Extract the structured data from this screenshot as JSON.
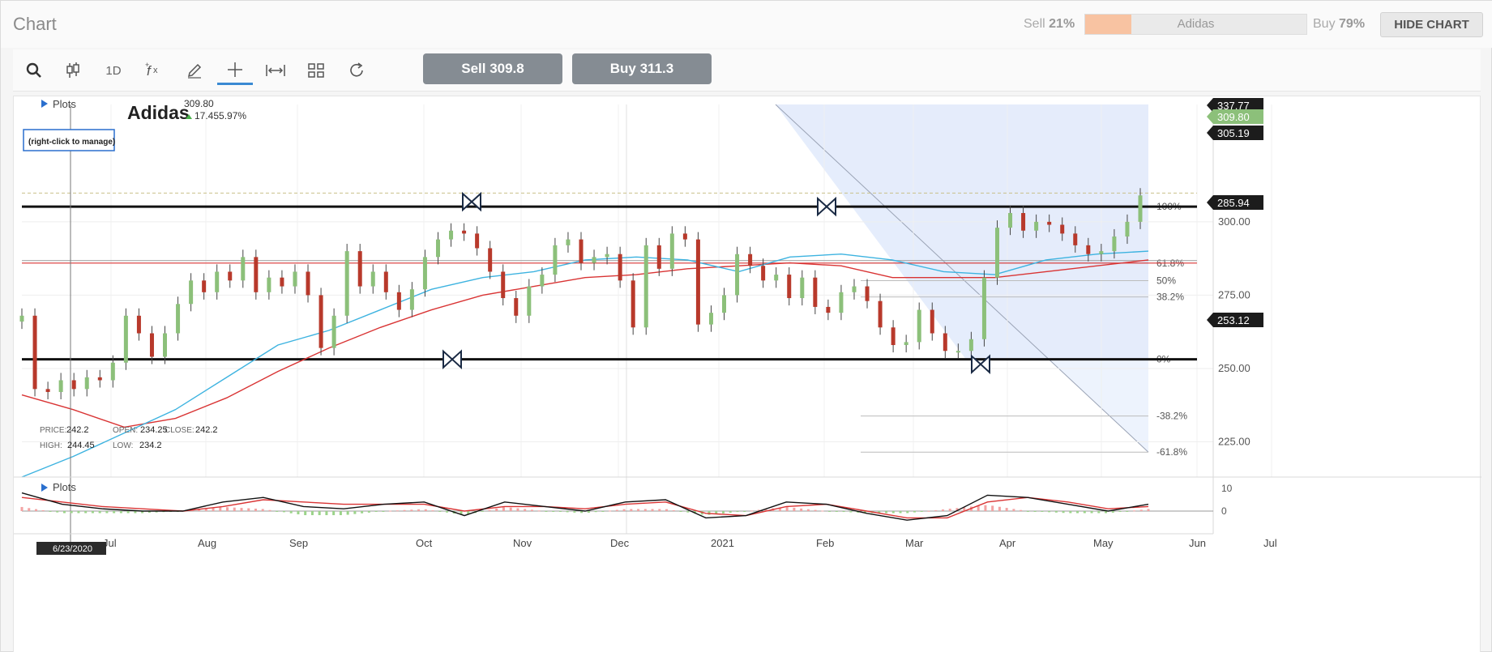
{
  "app": {
    "title": "Chart"
  },
  "sentiment": {
    "sell_label": "Sell",
    "sell_pct": "21%",
    "buy_label": "Buy",
    "buy_pct": "79%",
    "sell_fraction": 0.21,
    "instrument": "Adidas",
    "sell_color": "#f8c3a2"
  },
  "header": {
    "hide_chart_label": "HIDE CHART"
  },
  "toolbar": {
    "tools": [
      {
        "name": "search-icon",
        "glyph": ""
      },
      {
        "name": "candle-type-icon",
        "glyph": ""
      },
      {
        "name": "timeframe",
        "glyph": "1D"
      },
      {
        "name": "indicators-icon",
        "glyph": ""
      },
      {
        "name": "draw-icon",
        "glyph": ""
      },
      {
        "name": "crosshair-icon",
        "glyph": ""
      },
      {
        "name": "measure-icon",
        "glyph": ""
      },
      {
        "name": "layout-icon",
        "glyph": ""
      },
      {
        "name": "refresh-icon",
        "glyph": ""
      }
    ],
    "sell_button": "Sell 309.8",
    "buy_button": "Buy 311.3"
  },
  "chart": {
    "symbol": "Adidas",
    "last_price": "309.80",
    "change": "17.455.97%",
    "plots_label": "Plots",
    "manage_hint": "(right-click to manage)",
    "ohlc": {
      "price_label": "PRICE:",
      "price": "242.2",
      "open_label": "OPEN:",
      "open": "234.25",
      "close_label": "CLOSE:",
      "close": "242.2",
      "high_label": "HIGH:",
      "high": "244.45",
      "low_label": "LOW:",
      "low": "234.2"
    },
    "price_axis_ticks": [
      "300.00",
      "275.00",
      "250.00",
      "225.00"
    ],
    "price_tags": [
      {
        "label": "337.77",
        "style": "dark"
      },
      {
        "label": "309.80",
        "style": "green"
      },
      {
        "label": "305.19",
        "style": "dark"
      },
      {
        "label": "285.94",
        "style": "dark"
      },
      {
        "label": "253.12",
        "style": "dark"
      }
    ],
    "fib_levels": [
      "100%",
      "61.8%",
      "50%",
      "38.2%",
      "0%",
      "-38.2%",
      "-61.8%"
    ],
    "time_axis": [
      "Jul",
      "Aug",
      "Sep",
      "Oct",
      "Nov",
      "Dec",
      "2021",
      "Feb",
      "Mar",
      "Apr",
      "May",
      "Jun",
      "Jul"
    ],
    "crosshair_date": "6/23/2020",
    "lower_plots_label": "Plots",
    "lower_axis_ticks": [
      "10",
      "0"
    ],
    "colors": {
      "up": "#8cc07a",
      "down": "#b8392b",
      "ma_fast": "#3db3e0",
      "ma_slow": "#d93434",
      "fib_fill": "#cfdcf7"
    }
  },
  "chart_data": {
    "type": "candlestick",
    "title": "Adidas",
    "ylim": [
      213,
      340
    ],
    "y_ticks": [
      300,
      275,
      250,
      225
    ],
    "x_ticks": [
      "Jul",
      "Aug",
      "Sep",
      "Oct",
      "Nov",
      "Dec",
      "2021",
      "Feb",
      "Mar",
      "Apr",
      "May",
      "Jun",
      "Jul"
    ],
    "close_path": [
      268,
      243,
      242,
      246,
      243,
      247,
      246,
      252,
      268,
      262,
      254,
      262,
      272,
      280,
      276,
      283,
      280,
      288,
      276,
      281,
      278,
      283,
      275,
      257,
      268,
      290,
      278,
      283,
      276,
      270,
      277,
      288,
      294,
      297,
      296,
      291,
      283,
      274,
      268,
      278,
      282,
      292,
      294,
      286,
      288,
      289,
      280,
      264,
      292,
      284,
      296,
      294,
      265,
      269,
      275,
      289,
      285,
      280,
      282,
      274,
      281,
      271,
      269,
      276,
      278,
      273,
      264,
      258,
      259,
      270,
      262,
      256,
      256,
      260,
      281,
      298,
      303,
      297,
      300,
      299,
      296,
      292,
      289,
      290,
      295,
      300,
      309
    ],
    "horizontal_lines": [
      305.19,
      253.12
    ],
    "fib_levels": {
      "100%": 305.19,
      "61.8%": 285.94,
      "50%": 279.96,
      "38.2%": 274.38,
      "0%": 253.12,
      "-38.2%": 233.8,
      "-61.8%": 221.5
    },
    "ma_fast": [
      213,
      220,
      228,
      236,
      247,
      258,
      263,
      270,
      277,
      281,
      283,
      287,
      288,
      287,
      283,
      288,
      289,
      287,
      283,
      282,
      287,
      289,
      290
    ],
    "ma_slow": [
      241,
      236,
      230,
      233,
      240,
      249,
      257,
      264,
      270,
      275,
      278,
      281,
      282,
      284,
      285,
      286,
      285,
      281,
      281,
      281,
      283,
      285,
      287
    ],
    "oscillator_lines": {
      "fast": [
        8,
        3,
        1,
        0,
        0,
        4,
        6,
        2,
        1,
        3,
        4,
        -2,
        4,
        2,
        0,
        4,
        5,
        -3,
        -2,
        4,
        3,
        -1,
        -4,
        -2,
        7,
        6,
        3,
        0,
        3
      ],
      "slow": [
        6,
        4,
        2,
        1,
        0,
        2,
        5,
        4,
        3,
        3,
        3,
        0,
        2,
        2,
        1,
        3,
        4,
        -1,
        -2,
        2,
        3,
        0,
        -3,
        -3,
        4,
        6,
        4,
        1,
        2
      ]
    },
    "lower_ylim": [
      -10,
      15
    ]
  }
}
